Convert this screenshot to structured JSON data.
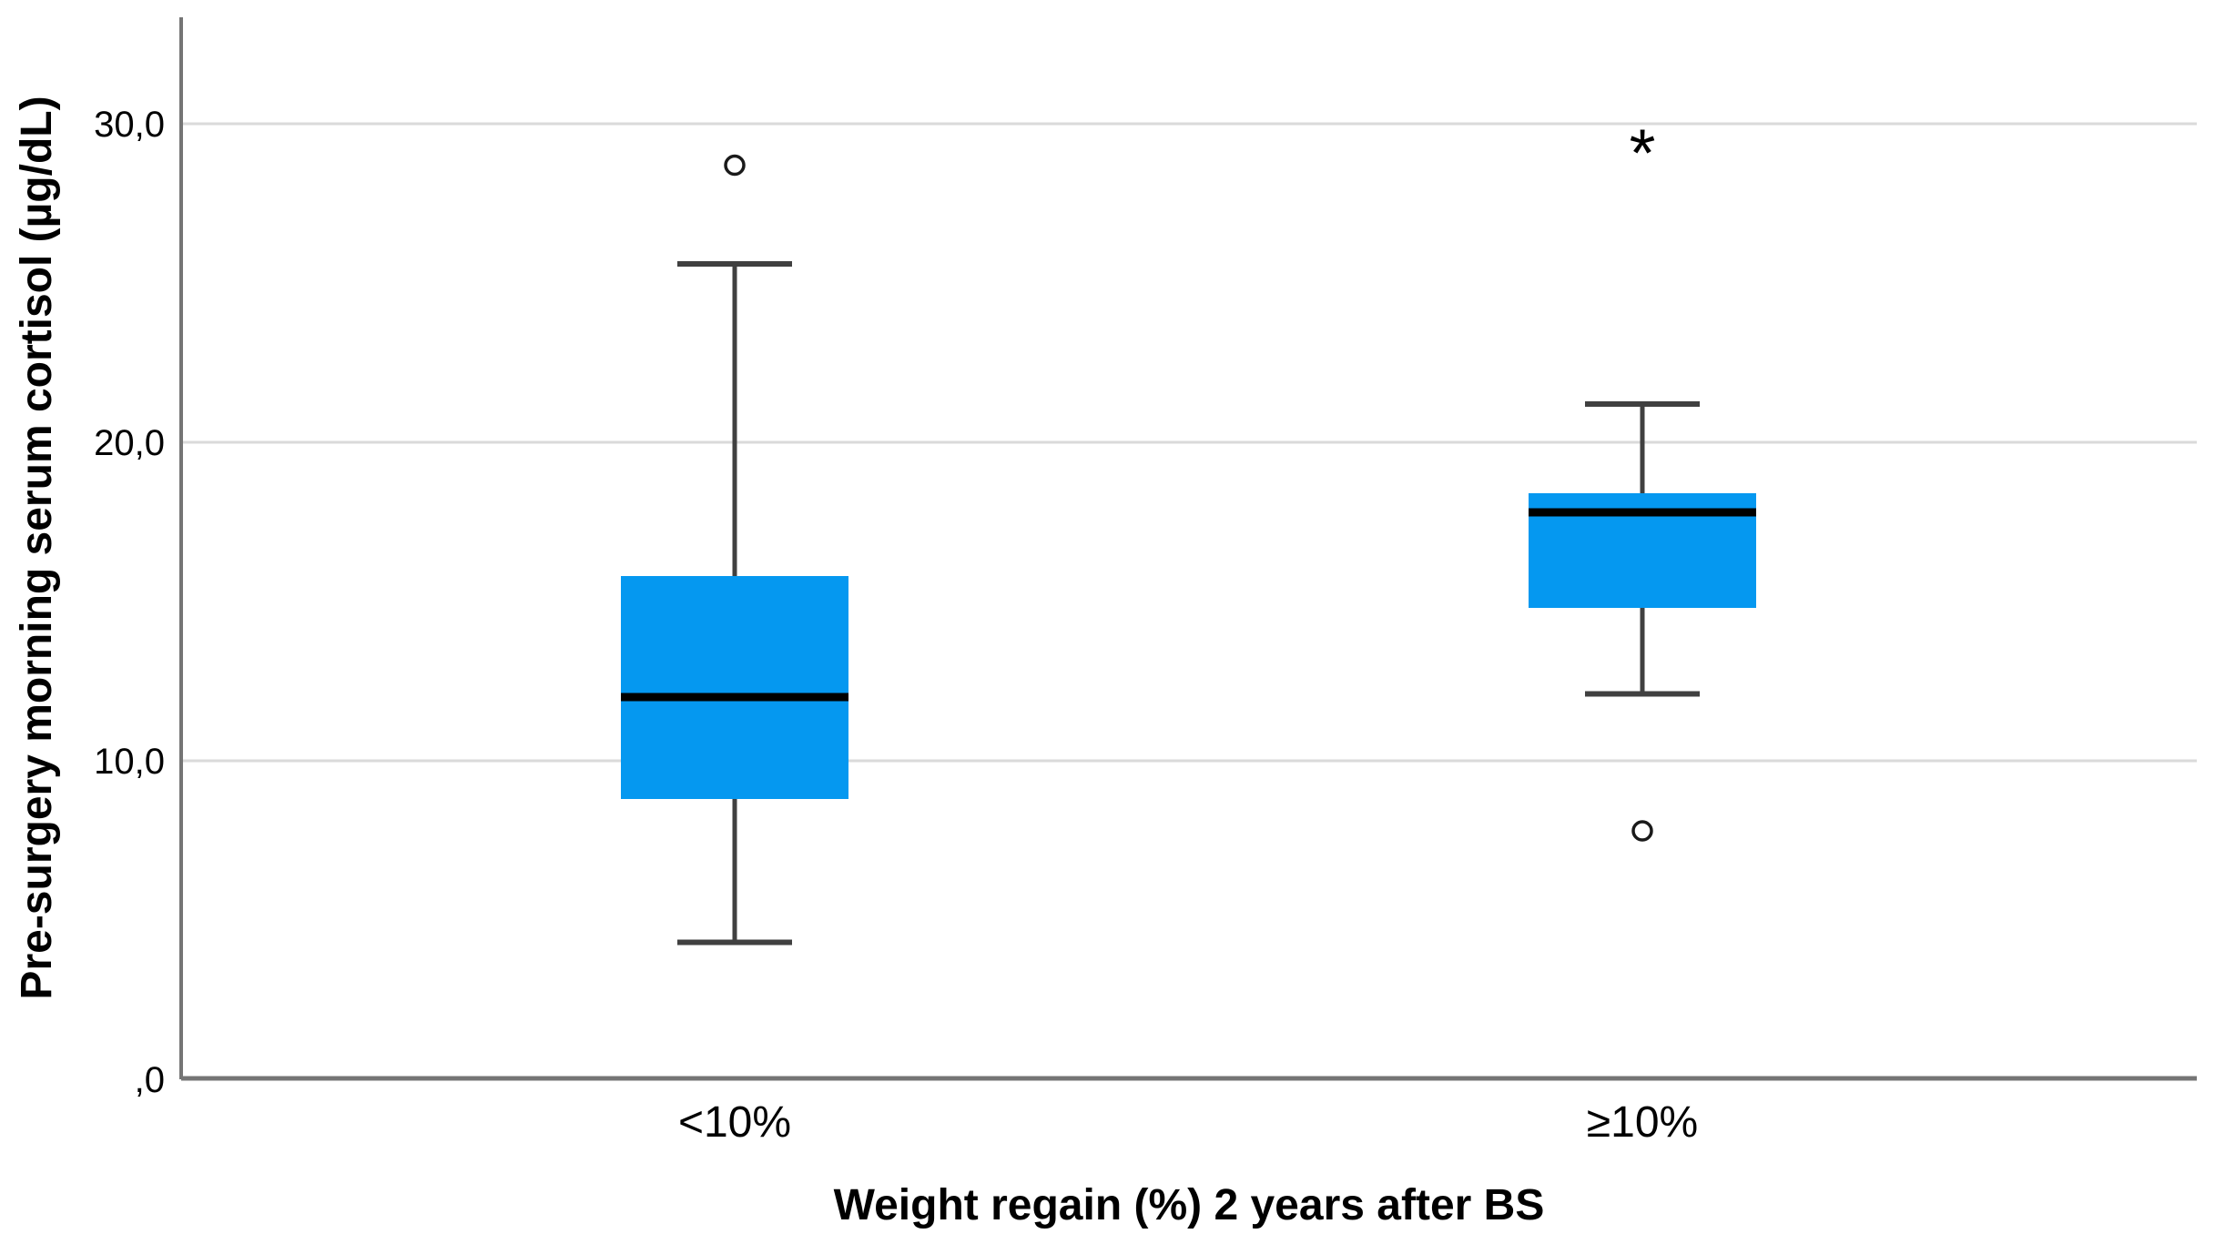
{
  "chart_data": {
    "type": "box",
    "xlabel": "Weight regain (%) 2 years after BS",
    "ylabel": "Pre-surgery morning serum cortisol (µg/dL)",
    "ylim": [
      0,
      33.3
    ],
    "grid": "horizontal-lines-at-major-ticks",
    "legend": "none",
    "decimal_separator": ",",
    "yticks": [
      {
        "value": 0,
        "label": ",0"
      },
      {
        "value": 10,
        "label": "10,0"
      },
      {
        "value": 20,
        "label": "20,0"
      },
      {
        "value": 30,
        "label": "30,0"
      }
    ],
    "categories": [
      "<10%",
      "≥10%"
    ],
    "boxes": [
      {
        "category": "<10%",
        "whisker_low": 4.3,
        "q1": 8.8,
        "median": 12.0,
        "q3": 15.8,
        "whisker_high": 25.6,
        "outliers_circle": [
          28.7
        ],
        "extremes_asterisk": []
      },
      {
        "category": "≥10%",
        "whisker_low": 12.1,
        "q1": 14.8,
        "median": 17.8,
        "q3": 18.4,
        "whisker_high": 21.2,
        "outliers_circle": [
          7.8
        ],
        "extremes_asterisk": [
          29.3
        ]
      }
    ],
    "markers": {
      "outlier": "open-circle",
      "extreme": "asterisk"
    },
    "colors": {
      "box_fill": "#0598F0",
      "median_line": "#000000",
      "whisker": "#404040",
      "gridline": "#DADADA",
      "axis_line": "#757575",
      "marker_stroke": "#1A1A1A",
      "text": "#000000"
    }
  }
}
